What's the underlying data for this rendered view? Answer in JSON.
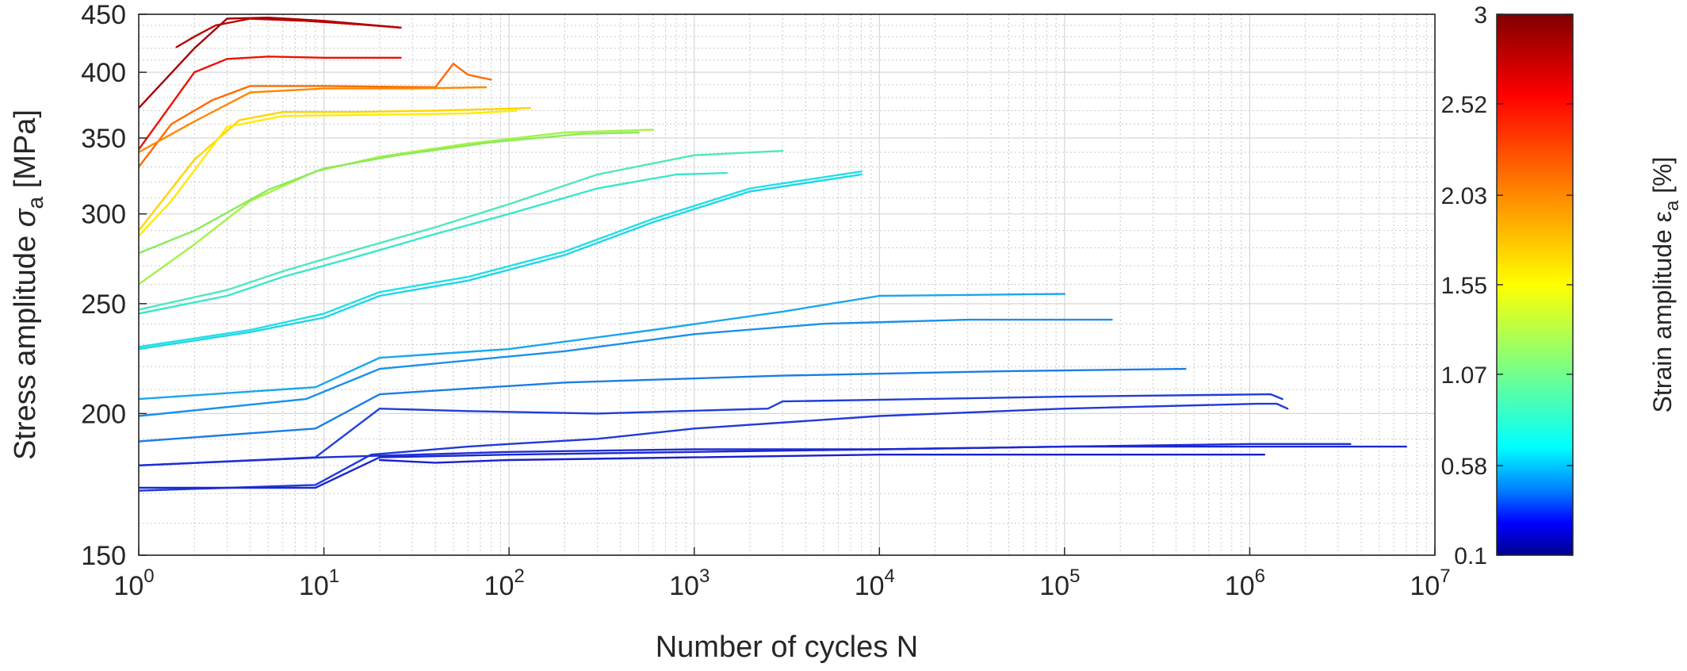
{
  "chart_data": {
    "type": "line",
    "title": "",
    "xlabel": "Number of cycles N",
    "ylabel": "Stress amplitude σa [MPa]",
    "ylabel_parts": {
      "text": "Stress amplitude ",
      "symbol": "σ",
      "subscript": "a",
      "unit": " [MPa]"
    },
    "xscale": "log",
    "yscale": "log",
    "xlim": [
      1,
      10000000
    ],
    "ylim": [
      150,
      450
    ],
    "x_ticks": [
      {
        "base": "10",
        "exp": "0"
      },
      {
        "base": "10",
        "exp": "1"
      },
      {
        "base": "10",
        "exp": "2"
      },
      {
        "base": "10",
        "exp": "3"
      },
      {
        "base": "10",
        "exp": "4"
      },
      {
        "base": "10",
        "exp": "5"
      },
      {
        "base": "10",
        "exp": "6"
      },
      {
        "base": "10",
        "exp": "7"
      }
    ],
    "y_ticks": [
      "150",
      "200",
      "250",
      "300",
      "350",
      "400",
      "450"
    ],
    "grid": "major and minor (dotted)",
    "colorbar": {
      "label": "Strain amplitude εa [%]",
      "label_parts": {
        "text": "Strain amplitude ",
        "symbol": "ε",
        "subscript": "a",
        "unit": " [%]"
      },
      "range": [
        0.1,
        3
      ],
      "ticks": [
        "3",
        "2.52",
        "2.03",
        "1.55",
        "1.07",
        "0.58",
        "0.1"
      ],
      "colormap": "jet"
    },
    "series": [
      {
        "strain": 2.95,
        "color": "#a80000",
        "x": [
          1,
          2,
          3,
          5,
          10,
          26
        ],
        "y": [
          372,
          420,
          446,
          447,
          444,
          438
        ]
      },
      {
        "strain": 2.85,
        "color": "#b80000",
        "x": [
          1.6,
          2,
          2.6,
          4,
          8,
          15,
          26
        ],
        "y": [
          421,
          430,
          440,
          446,
          444,
          441,
          438
        ]
      },
      {
        "strain": 2.4,
        "color": "#ee1100",
        "x": [
          1,
          2,
          3,
          5,
          10,
          26
        ],
        "y": [
          342,
          400,
          411,
          413,
          412,
          412
        ]
      },
      {
        "strain": 1.95,
        "color": "#ff6a00",
        "x": [
          1,
          1.5,
          2.5,
          4,
          10,
          40,
          50,
          60,
          80
        ],
        "y": [
          330,
          360,
          378,
          389,
          389,
          388,
          407,
          398,
          394
        ]
      },
      {
        "strain": 1.8,
        "color": "#ff8800",
        "x": [
          1,
          2,
          4,
          10,
          30,
          75
        ],
        "y": [
          340,
          362,
          384,
          387,
          387,
          388
        ]
      },
      {
        "strain": 1.05,
        "color": "#ffd400",
        "x": [
          1,
          2,
          3.5,
          6,
          15,
          40,
          130
        ],
        "y": [
          290,
          335,
          363,
          369,
          369,
          370,
          372
        ]
      },
      {
        "strain": 0.95,
        "color": "#ffea00",
        "x": [
          1,
          1.5,
          3,
          6,
          20,
          60,
          110
        ],
        "y": [
          287,
          308,
          358,
          366,
          367,
          368,
          370
        ]
      },
      {
        "strain": 0.72,
        "color": "#a6f24a",
        "x": [
          1,
          2,
          4,
          9,
          20,
          60,
          200,
          600
        ],
        "y": [
          260,
          282,
          308,
          327,
          337,
          346,
          354,
          356
        ]
      },
      {
        "strain": 0.66,
        "color": "#8bea5a",
        "x": [
          1,
          2,
          5,
          10,
          25,
          80,
          250,
          500
        ],
        "y": [
          277,
          290,
          315,
          329,
          338,
          347,
          353,
          354
        ]
      },
      {
        "strain": 0.52,
        "color": "#4ee8bd",
        "x": [
          1,
          3,
          6,
          15,
          40,
          100,
          300,
          1000,
          3000
        ],
        "y": [
          247,
          257,
          267,
          279,
          292,
          306,
          325,
          338,
          341
        ]
      },
      {
        "strain": 0.49,
        "color": "#3be6cc",
        "x": [
          1,
          3,
          6,
          15,
          40,
          100,
          300,
          800,
          1500
        ],
        "y": [
          245,
          254,
          264,
          275,
          288,
          300,
          316,
          325,
          326
        ]
      },
      {
        "strain": 0.43,
        "color": "#22dfe3",
        "x": [
          1,
          4,
          10,
          20,
          60,
          200,
          600,
          2000,
          8000
        ],
        "y": [
          229,
          237,
          245,
          256,
          264,
          278,
          297,
          316,
          327
        ]
      },
      {
        "strain": 0.41,
        "color": "#1dd6e8",
        "x": [
          1,
          4,
          10,
          20,
          60,
          200,
          600,
          2000,
          8000
        ],
        "y": [
          228,
          236,
          243,
          254,
          262,
          276,
          295,
          314,
          325
        ]
      },
      {
        "strain": 0.33,
        "color": "#1ba6ec",
        "x": [
          1,
          9,
          20,
          100,
          600,
          3000,
          10000,
          100000
        ],
        "y": [
          206,
          211,
          224,
          228,
          237,
          246,
          254,
          255
        ]
      },
      {
        "strain": 0.3,
        "color": "#1a90e8",
        "x": [
          1,
          8,
          20,
          200,
          1000,
          5000,
          30000,
          180000
        ],
        "y": [
          199,
          206,
          219,
          227,
          235,
          240,
          242,
          242
        ]
      },
      {
        "strain": 0.27,
        "color": "#1a7de6",
        "x": [
          1,
          9,
          20,
          50,
          200,
          3000,
          50000,
          450000
        ],
        "y": [
          189,
          194,
          208,
          210,
          213,
          216,
          218,
          219
        ]
      },
      {
        "strain": 0.2,
        "color": "#1f3fd8",
        "x": [
          1,
          9,
          20,
          60,
          300,
          2500,
          3000,
          100000,
          1300000,
          1500000
        ],
        "y": [
          180,
          183,
          202,
          201,
          200,
          202,
          205,
          207,
          208,
          206
        ]
      },
      {
        "strain": 0.18,
        "color": "#1f3ad8",
        "x": [
          1,
          9,
          18,
          60,
          100,
          300,
          1000,
          10000,
          100000,
          1100000,
          1400000,
          1600000
        ],
        "y": [
          171,
          173,
          184,
          187,
          188,
          190,
          194,
          199,
          202,
          204,
          204,
          202
        ]
      },
      {
        "strain": 0.16,
        "color": "#1e2fd4",
        "x": [
          1,
          10,
          100,
          1000,
          10000,
          100000,
          1000000,
          3500000
        ],
        "y": [
          180,
          183,
          185,
          186,
          186,
          187,
          188,
          188
        ]
      },
      {
        "strain": 0.14,
        "color": "#1c28d0",
        "x": [
          1,
          9,
          20,
          100,
          1000,
          10000,
          100000,
          1000000,
          7000000
        ],
        "y": [
          172,
          172,
          183,
          184,
          185,
          186,
          187,
          187,
          187
        ]
      },
      {
        "strain": 0.12,
        "color": "#1a20cc",
        "x": [
          20,
          40,
          100,
          1000,
          10000,
          100000,
          1000000,
          1200000
        ],
        "y": [
          182,
          181,
          182,
          183,
          184,
          184,
          184,
          184
        ]
      }
    ]
  }
}
